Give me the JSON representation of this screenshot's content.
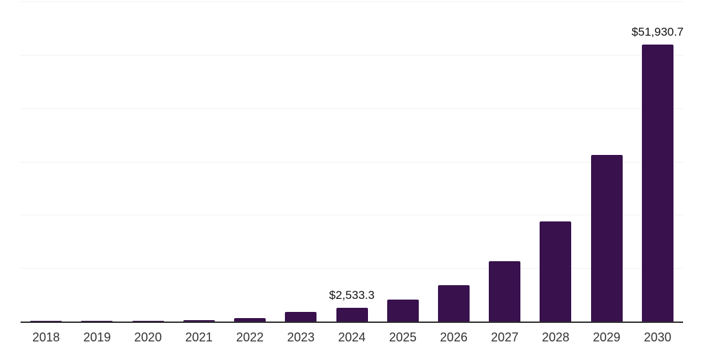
{
  "colors": {
    "background": "#ffffff",
    "bar": "#38114d",
    "axis_line": "#2e2e2e",
    "gridline": "#f1f1f1",
    "value_label": "#111111",
    "tick_label": "#333333"
  },
  "chart_data": {
    "type": "bar",
    "title": "",
    "xlabel": "",
    "ylabel": "",
    "categories": [
      "2018",
      "2019",
      "2020",
      "2021",
      "2022",
      "2023",
      "2024",
      "2025",
      "2026",
      "2027",
      "2028",
      "2029",
      "2030"
    ],
    "values": [
      50,
      100,
      170,
      260,
      700,
      1830,
      2533.3,
      4150,
      6850,
      11300,
      18800,
      31200,
      51930.7
    ],
    "bar_labels": {
      "2024": "$2,533.3",
      "2030": "$51,930.7"
    },
    "ylim": [
      0,
      60000
    ],
    "gridline_step": 10000,
    "grid": true,
    "legend": false,
    "y_axis_tick_labels_visible": false
  }
}
